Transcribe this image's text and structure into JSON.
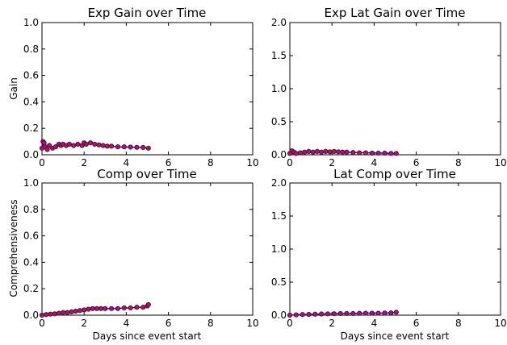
{
  "chart_data": [
    {
      "type": "line",
      "title": "Exp Gain over Time",
      "xlabel": "",
      "ylabel": "Gain",
      "xlim": [
        0,
        10
      ],
      "ylim": [
        0,
        1.0
      ],
      "xticks": [
        "0",
        "2",
        "4",
        "6",
        "8",
        "10"
      ],
      "yticks": [
        "0.0",
        "0.2",
        "0.4",
        "0.6",
        "0.8",
        "1.0"
      ],
      "xtick_values": [
        0,
        2,
        4,
        6,
        8,
        10
      ],
      "ytick_values": [
        0,
        0.2,
        0.4,
        0.6,
        0.8,
        1.0
      ],
      "series": [
        {
          "x": [
            0.0,
            0.05,
            0.1,
            0.15,
            0.25,
            0.35,
            0.5,
            0.65,
            0.8,
            0.9,
            1.0,
            1.15,
            1.3,
            1.5,
            1.7,
            1.9,
            2.0,
            2.1,
            2.3,
            2.5,
            2.7,
            2.9,
            3.1,
            3.3,
            3.6,
            3.9,
            4.2,
            4.5,
            4.8,
            5.05
          ],
          "y": [
            0.05,
            0.1,
            0.09,
            0.06,
            0.04,
            0.07,
            0.05,
            0.06,
            0.08,
            0.07,
            0.08,
            0.07,
            0.08,
            0.07,
            0.08,
            0.07,
            0.09,
            0.08,
            0.09,
            0.08,
            0.075,
            0.07,
            0.065,
            0.065,
            0.06,
            0.06,
            0.058,
            0.056,
            0.055,
            0.05
          ]
        }
      ],
      "line_color": "#0000ff",
      "marker_color": "#4b0082",
      "grid": false
    },
    {
      "type": "line",
      "title": "Exp Lat Gain over Time",
      "xlabel": "",
      "ylabel": "",
      "xlim": [
        0,
        10
      ],
      "ylim": [
        0,
        2.0
      ],
      "xticks": [
        "0",
        "2",
        "4",
        "6",
        "8",
        "10"
      ],
      "yticks": [
        "0.0",
        "0.5",
        "1.0",
        "1.5",
        "2.0"
      ],
      "xtick_values": [
        0,
        2,
        4,
        6,
        8,
        10
      ],
      "ytick_values": [
        0,
        0.5,
        1.0,
        1.5,
        2.0
      ],
      "series": [
        {
          "x": [
            0.0,
            0.1,
            0.2,
            0.3,
            0.5,
            0.7,
            0.9,
            1.1,
            1.3,
            1.5,
            1.7,
            1.9,
            2.1,
            2.3,
            2.5,
            2.7,
            3.0,
            3.3,
            3.6,
            3.9,
            4.2,
            4.5,
            4.8,
            5.05
          ],
          "y": [
            0.02,
            0.06,
            0.04,
            0.02,
            0.03,
            0.04,
            0.05,
            0.04,
            0.05,
            0.04,
            0.05,
            0.045,
            0.05,
            0.045,
            0.04,
            0.04,
            0.035,
            0.03,
            0.03,
            0.025,
            0.025,
            0.025,
            0.02,
            0.02
          ]
        }
      ],
      "line_color": "#0000ff",
      "marker_color": "#4b0082",
      "grid": false
    },
    {
      "type": "line",
      "title": "Comp over Time",
      "xlabel": "Days since event start",
      "ylabel": "Comprehensiveness",
      "xlim": [
        0,
        10
      ],
      "ylim": [
        0,
        1.0
      ],
      "xticks": [
        "0",
        "2",
        "4",
        "6",
        "8",
        "10"
      ],
      "yticks": [
        "0.0",
        "0.2",
        "0.4",
        "0.6",
        "0.8",
        "1.0"
      ],
      "xtick_values": [
        0,
        2,
        4,
        6,
        8,
        10
      ],
      "ytick_values": [
        0,
        0.2,
        0.4,
        0.6,
        0.8,
        1.0
      ],
      "series": [
        {
          "x": [
            0.0,
            0.2,
            0.4,
            0.6,
            0.8,
            1.0,
            1.2,
            1.4,
            1.6,
            1.8,
            2.0,
            2.2,
            2.4,
            2.6,
            2.8,
            3.0,
            3.3,
            3.6,
            3.9,
            4.2,
            4.5,
            4.8,
            5.0,
            5.05
          ],
          "y": [
            0.0,
            0.005,
            0.008,
            0.01,
            0.015,
            0.02,
            0.02,
            0.025,
            0.03,
            0.035,
            0.04,
            0.045,
            0.05,
            0.05,
            0.05,
            0.05,
            0.05,
            0.05,
            0.055,
            0.055,
            0.06,
            0.06,
            0.07,
            0.08
          ]
        }
      ],
      "line_color": "#0000ff",
      "marker_color": "#4b0082",
      "grid": false
    },
    {
      "type": "line",
      "title": "Lat Comp over Time",
      "xlabel": "Days since event start",
      "ylabel": "",
      "xlim": [
        0,
        10
      ],
      "ylim": [
        0,
        2.0
      ],
      "xticks": [
        "0",
        "2",
        "4",
        "6",
        "8",
        "10"
      ],
      "yticks": [
        "0.0",
        "0.5",
        "1.0",
        "1.5",
        "2.0"
      ],
      "xtick_values": [
        0,
        2,
        4,
        6,
        8,
        10
      ],
      "ytick_values": [
        0,
        0.5,
        1.0,
        1.5,
        2.0
      ],
      "series": [
        {
          "x": [
            0.0,
            0.3,
            0.6,
            0.9,
            1.2,
            1.5,
            1.8,
            2.1,
            2.4,
            2.7,
            3.0,
            3.3,
            3.6,
            3.9,
            4.2,
            4.5,
            4.8,
            5.05
          ],
          "y": [
            0.0,
            0.005,
            0.01,
            0.012,
            0.015,
            0.018,
            0.02,
            0.022,
            0.025,
            0.025,
            0.025,
            0.028,
            0.03,
            0.03,
            0.03,
            0.032,
            0.035,
            0.045
          ]
        }
      ],
      "line_color": "#0000ff",
      "marker_color": "#4b0082",
      "grid": false
    }
  ]
}
